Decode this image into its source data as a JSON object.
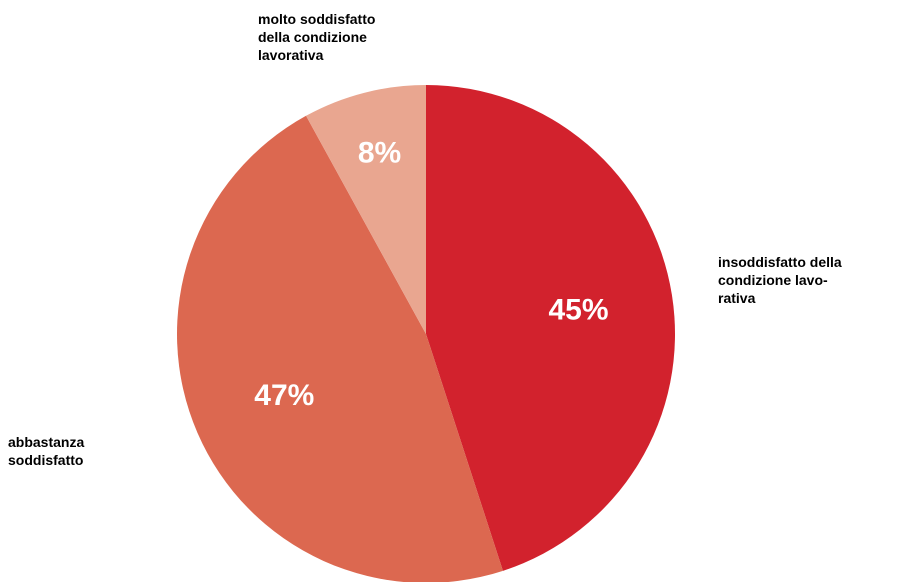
{
  "chart_data": {
    "type": "pie",
    "categories": [
      "insoddisfatto della\ncondizione lavo-\nrativa",
      "abbastanza\nsoddisfatto",
      "molto soddisfatto\ndella condizione\nlavorativa"
    ],
    "values": [
      45,
      47,
      8
    ],
    "value_labels": [
      "45%",
      "47%",
      "8%"
    ],
    "colors": [
      "#d2222d",
      "#dc6850",
      "#e9a690"
    ],
    "start_angle_deg": 0,
    "direction": "clockwise",
    "legend": "none"
  }
}
